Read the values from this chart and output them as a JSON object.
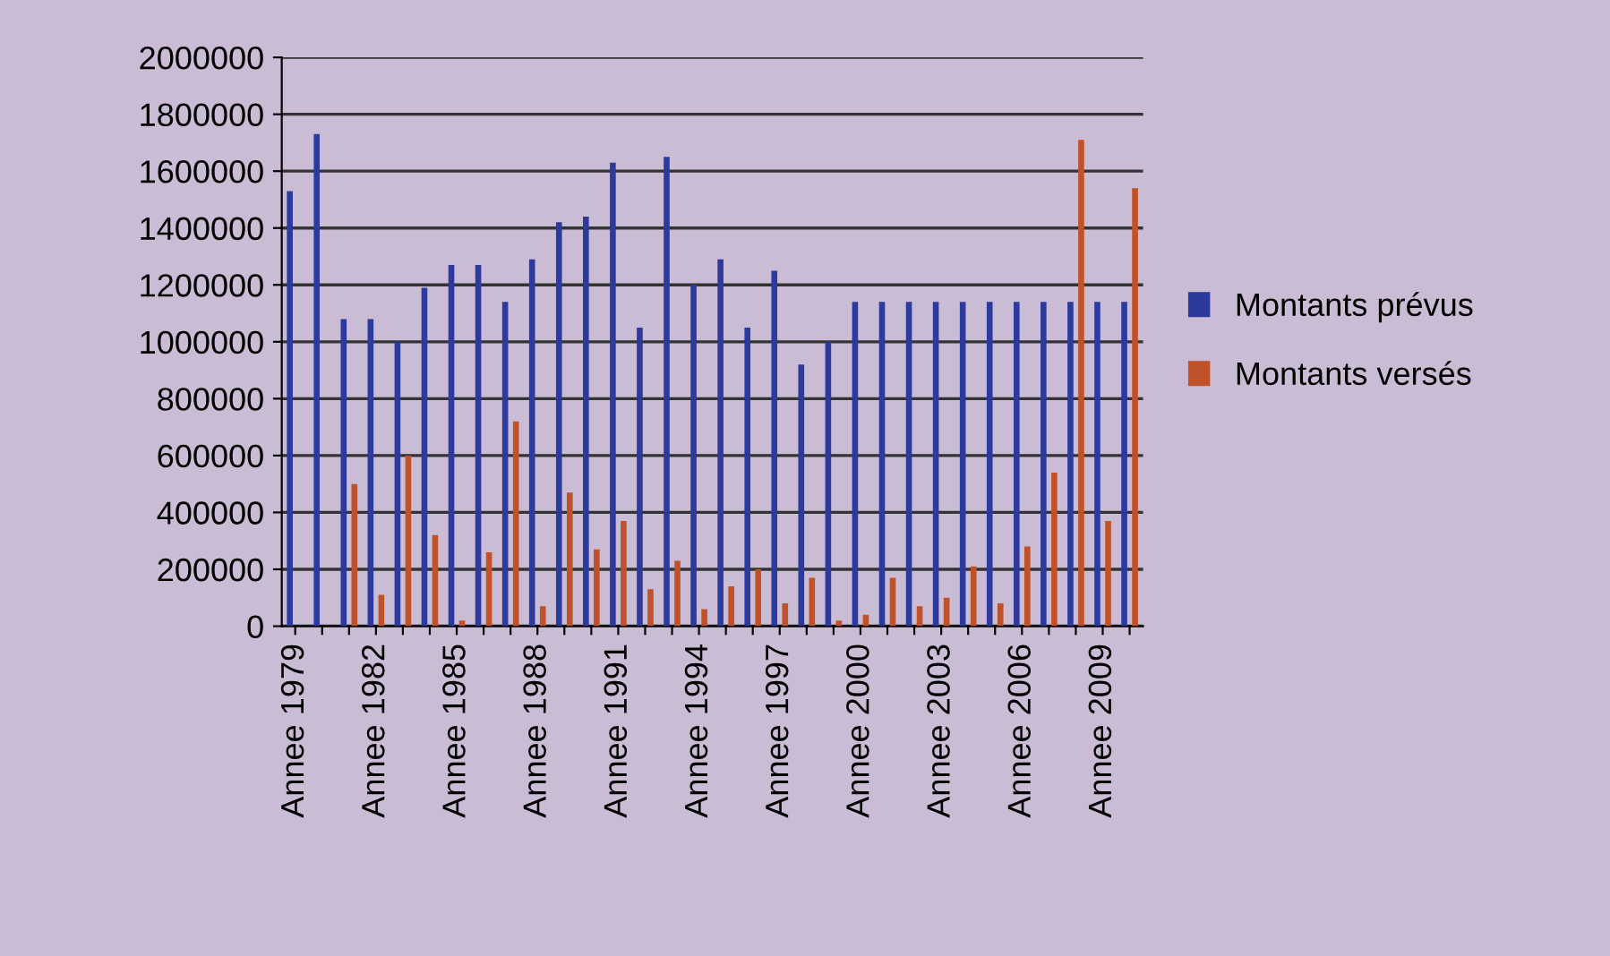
{
  "chart_data": {
    "type": "bar",
    "categories": [
      "Annee 1979",
      null,
      null,
      "Annee 1982",
      null,
      null,
      "Annee 1985",
      null,
      null,
      "Annee 1988",
      null,
      null,
      "Annee 1991",
      null,
      null,
      "Annee 1994",
      null,
      null,
      "Annee 1997",
      null,
      null,
      "Annee 2000",
      null,
      null,
      "Annee 2003",
      null,
      null,
      "Annee 2006",
      null,
      null,
      "Annee 2009",
      null
    ],
    "series": [
      {
        "name": "Montants prévus",
        "color": "#2b3a9c",
        "values": [
          1530000,
          1730000,
          1080000,
          1080000,
          1000000,
          1190000,
          1270000,
          1270000,
          1140000,
          1290000,
          1420000,
          1440000,
          1630000,
          1050000,
          1650000,
          1200000,
          1290000,
          1050000,
          1250000,
          920000,
          1000000,
          1140000,
          1140000,
          1140000,
          1140000,
          1140000,
          1140000,
          1140000,
          1140000,
          1140000,
          1140000,
          1140000
        ]
      },
      {
        "name": "Montants versés",
        "color": "#c0522a",
        "values": [
          null,
          null,
          500000,
          110000,
          600000,
          320000,
          20000,
          260000,
          720000,
          70000,
          470000,
          270000,
          370000,
          130000,
          230000,
          60000,
          140000,
          200000,
          80000,
          170000,
          20000,
          40000,
          170000,
          70000,
          100000,
          210000,
          80000,
          280000,
          540000,
          1710000,
          370000,
          1540000
        ]
      }
    ],
    "ylim": [
      0,
      2000000
    ],
    "yticks": [
      0,
      200000,
      400000,
      600000,
      800000,
      1000000,
      1200000,
      1400000,
      1600000,
      1800000,
      2000000
    ],
    "grid": "y",
    "legend": "right"
  }
}
